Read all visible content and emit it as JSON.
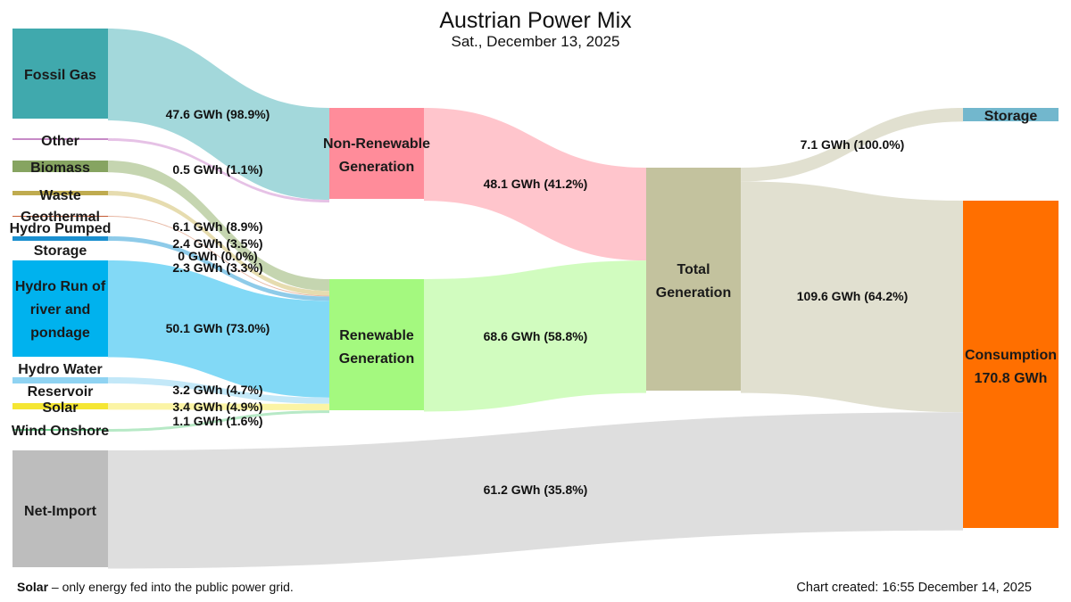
{
  "title": "Austrian Power Mix",
  "subtitle": "Sat., December 13, 2025",
  "footnote": {
    "term": "Solar",
    "text": " –  only energy fed into the public power grid."
  },
  "created": "Chart created: 16:55 December 14, 2025",
  "chart_data": {
    "type": "sankey",
    "unit": "GWh",
    "nodes": [
      {
        "id": "fossil_gas",
        "label": [
          "Fossil Gas"
        ],
        "color": "#40a9ad"
      },
      {
        "id": "other",
        "label": [
          "Other"
        ],
        "color": "#c78ac7"
      },
      {
        "id": "biomass",
        "label": [
          "Biomass"
        ],
        "color": "#86a461"
      },
      {
        "id": "waste",
        "label": [
          "Waste"
        ],
        "color": "#bfab4f"
      },
      {
        "id": "geothermal",
        "label": [
          "Geothermal"
        ],
        "color": "#c45a32"
      },
      {
        "id": "hydro_pumped",
        "label": [
          "Hydro Pumped",
          "Storage"
        ],
        "color": "#1a8fcf"
      },
      {
        "id": "hydro_ror",
        "label": [
          "Hydro Run of",
          "river and",
          "pondage"
        ],
        "color": "#00b2ee"
      },
      {
        "id": "hydro_res",
        "label": [
          "Hydro Water",
          "Reservoir"
        ],
        "color": "#8fd3f2"
      },
      {
        "id": "solar",
        "label": [
          "Solar"
        ],
        "color": "#f5e633"
      },
      {
        "id": "wind",
        "label": [
          "Wind Onshore"
        ],
        "color": "#6fd08e"
      },
      {
        "id": "net_import",
        "label": [
          "Net-Import"
        ],
        "color": "#bdbdbd"
      },
      {
        "id": "non_renewable",
        "label": [
          "Non-Renewable",
          "Generation"
        ],
        "color": "#ff8c9a"
      },
      {
        "id": "renewable",
        "label": [
          "Renewable",
          "Generation"
        ],
        "color": "#a4f97f"
      },
      {
        "id": "total",
        "label": [
          "Total",
          "Generation"
        ],
        "color": "#c3c29e"
      },
      {
        "id": "storage_out",
        "label": [
          "Storage"
        ],
        "color": "#72b7cd"
      },
      {
        "id": "consumption",
        "label": [
          "Consumption",
          "170.8 GWh"
        ],
        "color": "#ff6f00"
      }
    ],
    "links": [
      {
        "source": "fossil_gas",
        "target": "non_renewable",
        "value": 47.6,
        "label": "47.6 GWh (98.9%)"
      },
      {
        "source": "other",
        "target": "non_renewable",
        "value": 0.5,
        "label": "0.5 GWh (1.1%)"
      },
      {
        "source": "biomass",
        "target": "renewable",
        "value": 6.1,
        "label": "6.1 GWh (8.9%)"
      },
      {
        "source": "waste",
        "target": "renewable",
        "value": 2.4,
        "label": "2.4 GWh (3.5%)"
      },
      {
        "source": "geothermal",
        "target": "renewable",
        "value": 0,
        "label": "0 GWh (0.0%)"
      },
      {
        "source": "hydro_pumped",
        "target": "renewable",
        "value": 2.3,
        "label": "2.3 GWh (3.3%)"
      },
      {
        "source": "hydro_ror",
        "target": "renewable",
        "value": 50.1,
        "label": "50.1 GWh (73.0%)"
      },
      {
        "source": "hydro_res",
        "target": "renewable",
        "value": 3.2,
        "label": "3.2 GWh (4.7%)"
      },
      {
        "source": "solar",
        "target": "renewable",
        "value": 3.4,
        "label": "3.4 GWh (4.9%)"
      },
      {
        "source": "wind",
        "target": "renewable",
        "value": 1.1,
        "label": "1.1 GWh (1.6%)"
      },
      {
        "source": "non_renewable",
        "target": "total",
        "value": 48.1,
        "label": "48.1 GWh (41.2%)"
      },
      {
        "source": "renewable",
        "target": "total",
        "value": 68.6,
        "label": "68.6 GWh (58.8%)"
      },
      {
        "source": "total",
        "target": "storage_out",
        "value": 7.1,
        "label": "7.1 GWh (100.0%)"
      },
      {
        "source": "total",
        "target": "consumption",
        "value": 109.6,
        "label": "109.6 GWh (64.2%)"
      },
      {
        "source": "net_import",
        "target": "consumption",
        "value": 61.2,
        "label": "61.2 GWh (35.8%)"
      }
    ]
  }
}
